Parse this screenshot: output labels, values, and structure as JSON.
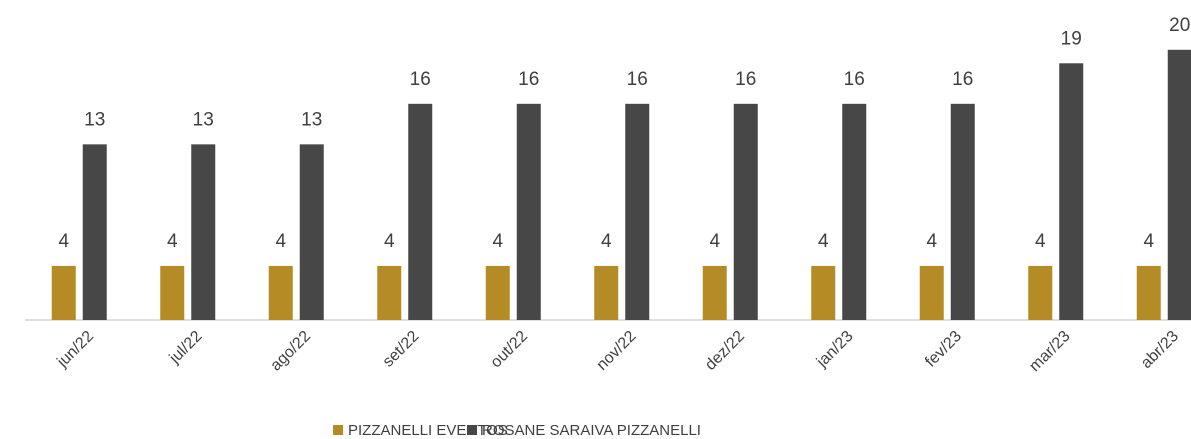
{
  "chart_data": {
    "type": "bar",
    "categories": [
      "jun/22",
      "jul/22",
      "ago/22",
      "set/22",
      "out/22",
      "nov/22",
      "dez/22",
      "jan/23",
      "fev/23",
      "mar/23",
      "abr/23"
    ],
    "series": [
      {
        "name": "PIZZANELLI EVENTOS",
        "color": "#b58b26",
        "values": [
          4,
          4,
          4,
          4,
          4,
          4,
          4,
          4,
          4,
          4,
          4
        ]
      },
      {
        "name": "ROSANE SARAIVA PIZZANELLI",
        "color": "#474747",
        "values": [
          13,
          13,
          13,
          16,
          16,
          16,
          16,
          16,
          16,
          19,
          20
        ]
      }
    ],
    "ylim": [
      0,
      22.5
    ],
    "legend": "bottom"
  }
}
